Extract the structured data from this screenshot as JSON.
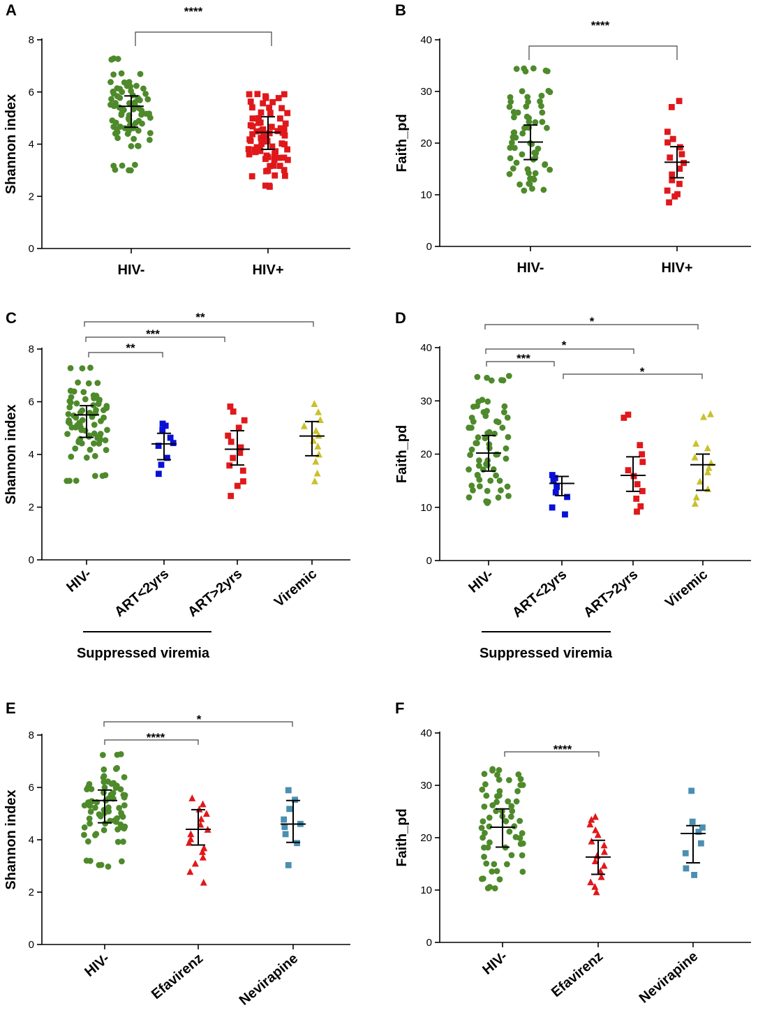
{
  "chart_data": [
    {
      "panel": "A",
      "type": "scatter",
      "ylabel": "Shannon index",
      "ylim": [
        0,
        8
      ],
      "yticks": [
        0,
        2,
        4,
        6,
        8
      ],
      "categories": [
        "HIV-",
        "HIV+"
      ],
      "series": [
        {
          "name": "HIV-",
          "color": "#4e8a2b",
          "marker": "circle",
          "n": 56,
          "mean": 5.45,
          "sd_low": 4.65,
          "sd_high": 5.85,
          "min": 3.0,
          "max": 7.25,
          "values": [
            3.0,
            3.2,
            3.9,
            4.2,
            4.4,
            4.5,
            4.6,
            4.7,
            4.8,
            4.9,
            5.0,
            5.1,
            5.2,
            5.3,
            5.4,
            5.5,
            5.6,
            5.7,
            5.8,
            5.9,
            6.0,
            6.1,
            6.2,
            6.4,
            6.7,
            7.25
          ]
        },
        {
          "name": "HIV+",
          "color": "#e0181b",
          "marker": "square",
          "n": 60,
          "mean": 4.45,
          "sd_low": 3.8,
          "sd_high": 5.05,
          "min": 2.4,
          "max": 5.9,
          "values": [
            2.4,
            2.8,
            3.0,
            3.2,
            3.4,
            3.5,
            3.6,
            3.7,
            3.8,
            3.9,
            4.0,
            4.1,
            4.2,
            4.3,
            4.4,
            4.5,
            4.6,
            4.7,
            4.8,
            5.0,
            5.2,
            5.4,
            5.6,
            5.8,
            5.9
          ]
        }
      ],
      "comparisons": [
        {
          "from": "HIV-",
          "to": "HIV+",
          "label": "****"
        }
      ]
    },
    {
      "panel": "B",
      "type": "scatter",
      "ylabel": "Faith_pd",
      "ylim": [
        0,
        40
      ],
      "yticks": [
        0,
        10,
        20,
        30,
        40
      ],
      "categories": [
        "HIV-",
        "HIV+"
      ],
      "series": [
        {
          "name": "HIV-",
          "color": "#4e8a2b",
          "marker": "circle",
          "n": 56,
          "mean": 20.2,
          "sd_low": 16.8,
          "sd_high": 23.5,
          "min": 11.0,
          "max": 34.5,
          "values": [
            11.0,
            12.0,
            13.0,
            14.0,
            15.0,
            16.0,
            17.0,
            18.0,
            19.0,
            20.0,
            21.0,
            22.0,
            23.0,
            24.0,
            25.0,
            26.0,
            27.0,
            28.0,
            29.0,
            30.0,
            34.0,
            34.5
          ]
        },
        {
          "name": "HIV+",
          "color": "#e0181b",
          "marker": "square",
          "n": 60,
          "mean": 16.3,
          "sd_low": 13.3,
          "sd_high": 19.3,
          "min": 8.5,
          "max": 28.0,
          "values": [
            8.5,
            9.5,
            10.0,
            11.0,
            12.0,
            13.0,
            14.0,
            15.0,
            16.0,
            17.0,
            18.0,
            19.0,
            20.0,
            21.0,
            22.0,
            27.0,
            28.0
          ]
        }
      ],
      "comparisons": [
        {
          "from": "HIV-",
          "to": "HIV+",
          "label": "****"
        }
      ]
    },
    {
      "panel": "C",
      "type": "scatter",
      "ylabel": "Shannon index",
      "ylim": [
        0,
        8
      ],
      "yticks": [
        0,
        2,
        4,
        6,
        8
      ],
      "categories": [
        "HIV-",
        "ART<2yrs",
        "ART>2yrs",
        "Viremic"
      ],
      "group_label": "Suppressed viremia",
      "series": [
        {
          "name": "HIV-",
          "color": "#4e8a2b",
          "marker": "circle",
          "mean": 5.5,
          "sd_low": 4.65,
          "sd_high": 5.85,
          "values": [
            3.0,
            3.2,
            3.9,
            4.2,
            4.4,
            4.5,
            4.6,
            4.7,
            4.8,
            4.9,
            5.0,
            5.1,
            5.2,
            5.3,
            5.4,
            5.5,
            5.6,
            5.7,
            5.8,
            5.9,
            6.0,
            6.1,
            6.2,
            6.4,
            6.7,
            7.25
          ]
        },
        {
          "name": "ART<2yrs",
          "color": "#0a10d6",
          "marker": "square",
          "mean": 4.4,
          "sd_low": 3.8,
          "sd_high": 4.8,
          "values": [
            3.3,
            3.6,
            3.9,
            4.3,
            4.4,
            4.6,
            4.9,
            5.1,
            5.2
          ]
        },
        {
          "name": "ART>2yrs",
          "color": "#e0181b",
          "marker": "square",
          "mean": 4.2,
          "sd_low": 3.6,
          "sd_high": 4.9,
          "values": [
            2.4,
            2.8,
            3.0,
            3.4,
            3.6,
            3.9,
            4.1,
            4.3,
            4.5,
            4.7,
            5.0,
            5.3,
            5.6,
            5.8
          ]
        },
        {
          "name": "Viremic",
          "color": "#c9c12a",
          "marker": "triangle",
          "mean": 4.7,
          "sd_low": 3.95,
          "sd_high": 5.25,
          "values": [
            3.0,
            3.3,
            3.7,
            4.0,
            4.3,
            4.5,
            4.7,
            4.9,
            5.1,
            5.3,
            5.6,
            5.9
          ]
        }
      ],
      "comparisons": [
        {
          "from": "HIV-",
          "to": "ART<2yrs",
          "label": "**"
        },
        {
          "from": "HIV-",
          "to": "ART>2yrs",
          "label": "***"
        },
        {
          "from": "HIV-",
          "to": "Viremic",
          "label": "**"
        }
      ]
    },
    {
      "panel": "D",
      "type": "scatter",
      "ylabel": "Faith_pd",
      "ylim": [
        0,
        40
      ],
      "yticks": [
        0,
        10,
        20,
        30,
        40
      ],
      "categories": [
        "HIV-",
        "ART<2yrs",
        "ART>2yrs",
        "Viremic"
      ],
      "group_label": "Suppressed viremia",
      "series": [
        {
          "name": "HIV-",
          "color": "#4e8a2b",
          "marker": "circle",
          "mean": 20.2,
          "sd_low": 16.8,
          "sd_high": 23.5,
          "values": [
            11.0,
            12.0,
            13.0,
            14.0,
            15.0,
            16.0,
            17.0,
            18.0,
            19.0,
            20.0,
            21.0,
            22.0,
            23.0,
            24.0,
            25.0,
            26.0,
            27.0,
            28.0,
            29.0,
            30.0,
            34.0,
            34.5
          ]
        },
        {
          "name": "ART<2yrs",
          "color": "#0a10d6",
          "marker": "square",
          "mean": 14.5,
          "sd_low": 12.2,
          "sd_high": 15.8,
          "values": [
            8.5,
            10.0,
            12.0,
            13.0,
            14.0,
            15.0,
            15.5,
            16.0
          ]
        },
        {
          "name": "ART>2yrs",
          "color": "#e0181b",
          "marker": "square",
          "mean": 16.0,
          "sd_low": 13.0,
          "sd_high": 19.5,
          "values": [
            9.0,
            10.0,
            11.5,
            13.0,
            14.5,
            16.0,
            17.0,
            18.5,
            20.0,
            21.5,
            27.0,
            27.5
          ]
        },
        {
          "name": "Viremic",
          "color": "#c9c12a",
          "marker": "triangle",
          "mean": 18.0,
          "sd_low": 13.2,
          "sd_high": 20.0,
          "values": [
            10.5,
            12.0,
            13.5,
            15.0,
            16.5,
            17.5,
            18.5,
            19.5,
            21.0,
            22.0,
            27.0,
            27.5
          ]
        }
      ],
      "comparisons": [
        {
          "from": "HIV-",
          "to": "ART<2yrs",
          "label": "***"
        },
        {
          "from": "HIV-",
          "to": "ART>2yrs",
          "label": "*"
        },
        {
          "from": "HIV-",
          "to": "Viremic",
          "label": "*"
        },
        {
          "from": "ART<2yrs",
          "to": "Viremic",
          "label": "*"
        }
      ]
    },
    {
      "panel": "E",
      "type": "scatter",
      "ylabel": "Shannon index",
      "ylim": [
        0,
        8
      ],
      "yticks": [
        0,
        2,
        4,
        6,
        8
      ],
      "categories": [
        "HIV-",
        "Efavirenz",
        "Nevirapine"
      ],
      "series": [
        {
          "name": "HIV-",
          "color": "#4e8a2b",
          "marker": "circle",
          "mean": 5.5,
          "sd_low": 4.65,
          "sd_high": 5.9,
          "values": [
            3.0,
            3.2,
            3.9,
            4.2,
            4.4,
            4.5,
            4.6,
            4.7,
            4.8,
            4.9,
            5.0,
            5.1,
            5.2,
            5.3,
            5.4,
            5.5,
            5.6,
            5.7,
            5.8,
            5.9,
            6.0,
            6.1,
            6.2,
            6.4,
            6.7,
            7.25
          ]
        },
        {
          "name": "Efavirenz",
          "color": "#e0181b",
          "marker": "triangle",
          "mean": 4.4,
          "sd_low": 3.8,
          "sd_high": 5.15,
          "values": [
            2.4,
            2.8,
            3.1,
            3.3,
            3.5,
            3.7,
            3.9,
            4.0,
            4.2,
            4.4,
            4.6,
            4.8,
            5.0,
            5.2,
            5.4,
            5.6
          ]
        },
        {
          "name": "Nevirapine",
          "color": "#4b8fb0",
          "marker": "square",
          "mean": 4.6,
          "sd_low": 3.9,
          "sd_high": 5.5,
          "values": [
            3.0,
            3.9,
            4.2,
            4.5,
            4.6,
            4.8,
            5.2,
            5.5,
            5.9
          ]
        }
      ],
      "comparisons": [
        {
          "from": "HIV-",
          "to": "Efavirenz",
          "label": "****"
        },
        {
          "from": "HIV-",
          "to": "Nevirapine",
          "label": "*"
        }
      ]
    },
    {
      "panel": "F",
      "type": "scatter",
      "ylabel": "Faith_pd",
      "ylim": [
        0,
        40
      ],
      "yticks": [
        0,
        10,
        20,
        30,
        40
      ],
      "categories": [
        "HIV-",
        "Efavirenz",
        "Nevirapine"
      ],
      "series": [
        {
          "name": "HIV-",
          "color": "#4e8a2b",
          "marker": "circle",
          "mean": 22.0,
          "sd_low": 18.2,
          "sd_high": 25.5,
          "values": [
            10.5,
            12.0,
            13.5,
            15.0,
            16.5,
            18.0,
            19.0,
            20.0,
            21.0,
            22.0,
            23.0,
            24.0,
            25.0,
            26.0,
            27.0,
            28.0,
            29.0,
            30.0,
            31.0,
            32.0,
            33.0
          ]
        },
        {
          "name": "Efavirenz",
          "color": "#e0181b",
          "marker": "triangle",
          "mean": 16.3,
          "sd_low": 13.0,
          "sd_high": 19.5,
          "values": [
            9.5,
            10.5,
            11.5,
            12.5,
            13.5,
            14.5,
            15.5,
            16.5,
            17.5,
            18.5,
            19.5,
            20.5,
            21.5,
            22.5,
            23.5,
            24.0
          ]
        },
        {
          "name": "Nevirapine",
          "color": "#4b8fb0",
          "marker": "square",
          "mean": 20.8,
          "sd_low": 15.2,
          "sd_high": 22.3,
          "values": [
            13.0,
            14.0,
            17.0,
            19.0,
            21.0,
            22.0,
            23.0,
            28.8
          ]
        }
      ],
      "comparisons": [
        {
          "from": "HIV-",
          "to": "Efavirenz",
          "label": "****"
        }
      ]
    }
  ]
}
